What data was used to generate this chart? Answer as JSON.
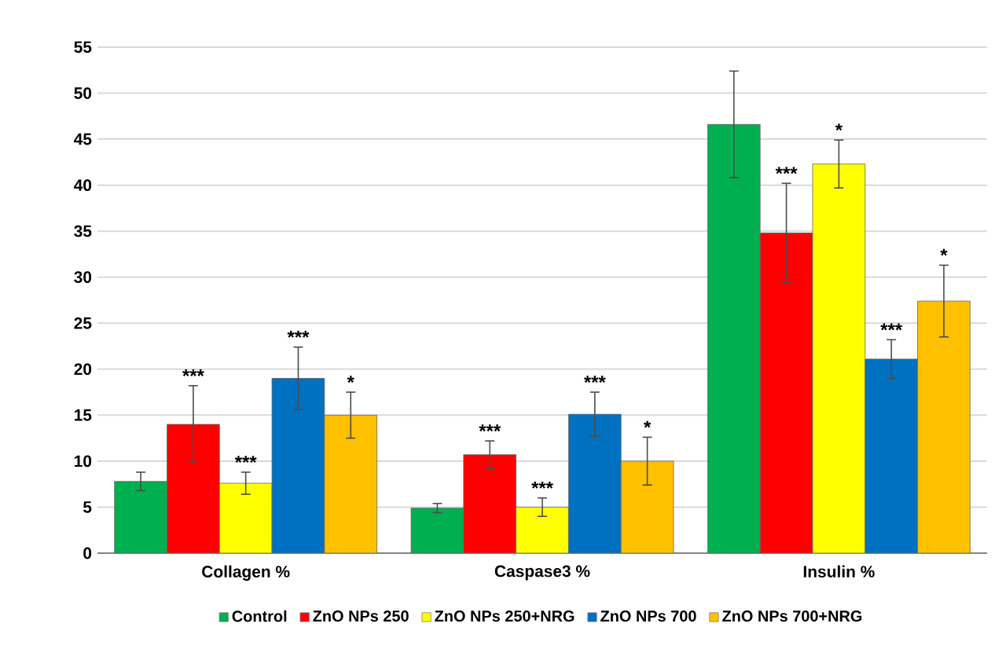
{
  "chart_data": {
    "type": "bar",
    "categories": [
      "Collagen %",
      "Caspase3 %",
      "Insulin %"
    ],
    "series": [
      {
        "name": "Control",
        "color": "#00b050",
        "values": [
          7.8,
          4.9,
          46.6
        ],
        "errors": [
          1.0,
          0.5,
          5.8
        ]
      },
      {
        "name": "ZnO NPs 250",
        "color": "#ff0000",
        "values": [
          14.0,
          10.7,
          34.8
        ],
        "errors": [
          4.2,
          1.5,
          5.4
        ],
        "value_labels": [
          "***",
          "***",
          "***"
        ]
      },
      {
        "name": "ZnO NPs 250+NRG",
        "color": "#ffff00",
        "values": [
          7.6,
          5.0,
          42.3
        ],
        "errors": [
          1.2,
          1.0,
          2.6
        ],
        "value_labels": [
          "***",
          "***",
          "*"
        ]
      },
      {
        "name": "ZnO NPs 700",
        "color": "#0070c0",
        "values": [
          19.0,
          15.1,
          21.1
        ],
        "errors": [
          3.4,
          2.4,
          2.1
        ],
        "value_labels": [
          "***",
          "***",
          "***"
        ]
      },
      {
        "name": "ZnO NPs 700+NRG",
        "color": "#ffc000",
        "values": [
          15.0,
          10.0,
          27.4
        ],
        "errors": [
          2.5,
          2.6,
          3.9
        ],
        "value_labels": [
          "*",
          "*",
          "*"
        ]
      }
    ],
    "ylim": [
      0,
      55
    ],
    "yticks": [
      0,
      5,
      10,
      15,
      20,
      25,
      30,
      35,
      40,
      45,
      50,
      55
    ],
    "grid": "y",
    "legend": "bottom"
  }
}
